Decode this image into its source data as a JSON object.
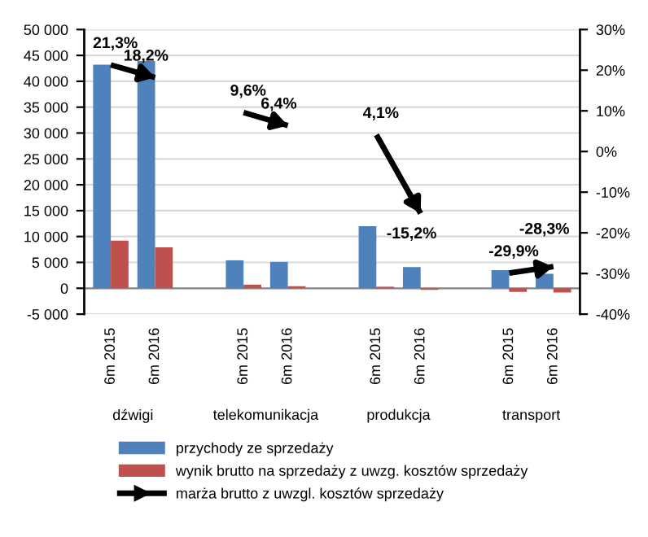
{
  "chart_data": {
    "type": "bar",
    "categories": [
      "6m 2015",
      "6m 2016",
      null,
      "6m 2015",
      "6m 2016",
      null,
      "6m 2015",
      "6m 2016",
      null,
      "6m 2015",
      "6m 2016"
    ],
    "series": [
      {
        "name": "przychody ze sprzedaży",
        "color": "#4f81bd",
        "values": [
          43200,
          43900,
          null,
          5400,
          5100,
          null,
          12000,
          4100,
          null,
          3500,
          2800
        ]
      },
      {
        "name": "wynik brutto na sprzedaży z uwzg. kosztów sprzedaży",
        "color": "#c0504d",
        "values": [
          9200,
          7900,
          null,
          700,
          400,
          null,
          300,
          -300,
          null,
          -700,
          -800
        ]
      },
      {
        "name": "marża brutto z uwzgl. kosztów sprzedaży",
        "type": "line",
        "axis": "y2",
        "color": "#000000",
        "values": [
          21.3,
          18.2,
          null,
          9.6,
          6.4,
          null,
          4.1,
          -15.2,
          null,
          -29.9,
          -28.3
        ],
        "value_labels": [
          "21,3%",
          "18,2%",
          null,
          "9,6%",
          "6,4%",
          null,
          "4,1%",
          "-15,2%",
          null,
          "-29,9%",
          "-28,3%"
        ]
      }
    ],
    "annotations": [
      "dźwigi",
      "telekomunikacja",
      "produkcja",
      "transport"
    ],
    "ylim": [
      -5000,
      50000
    ],
    "yticks": [
      {
        "value": -5000,
        "label": "-5 000"
      },
      0,
      {
        "value": 5000,
        "label": "5 000"
      },
      {
        "value": 10000,
        "label": "10 000"
      },
      {
        "value": 15000,
        "label": "15 000"
      },
      {
        "value": 20000,
        "label": "20 000"
      },
      {
        "value": 25000,
        "label": "25 000"
      },
      {
        "value": 30000,
        "label": "30 000"
      },
      {
        "value": 35000,
        "label": "35 000"
      },
      {
        "value": 40000,
        "label": "40 000"
      },
      {
        "value": 45000,
        "label": "45 000"
      },
      {
        "value": 50000,
        "label": "50 000"
      }
    ],
    "y2lim": [
      -40,
      30
    ],
    "y2ticks": [
      {
        "value": -40,
        "label": "-40%"
      },
      {
        "value": -30,
        "label": "-30%"
      },
      {
        "value": -20,
        "label": "-20%"
      },
      {
        "value": -10,
        "label": "-10%"
      },
      {
        "value": 0,
        "label": "0%"
      },
      {
        "value": 10,
        "label": "10%"
      },
      {
        "value": 20,
        "label": "20%"
      },
      {
        "value": 30,
        "label": "30%"
      }
    ],
    "grid": "y",
    "legend": "bottom"
  }
}
